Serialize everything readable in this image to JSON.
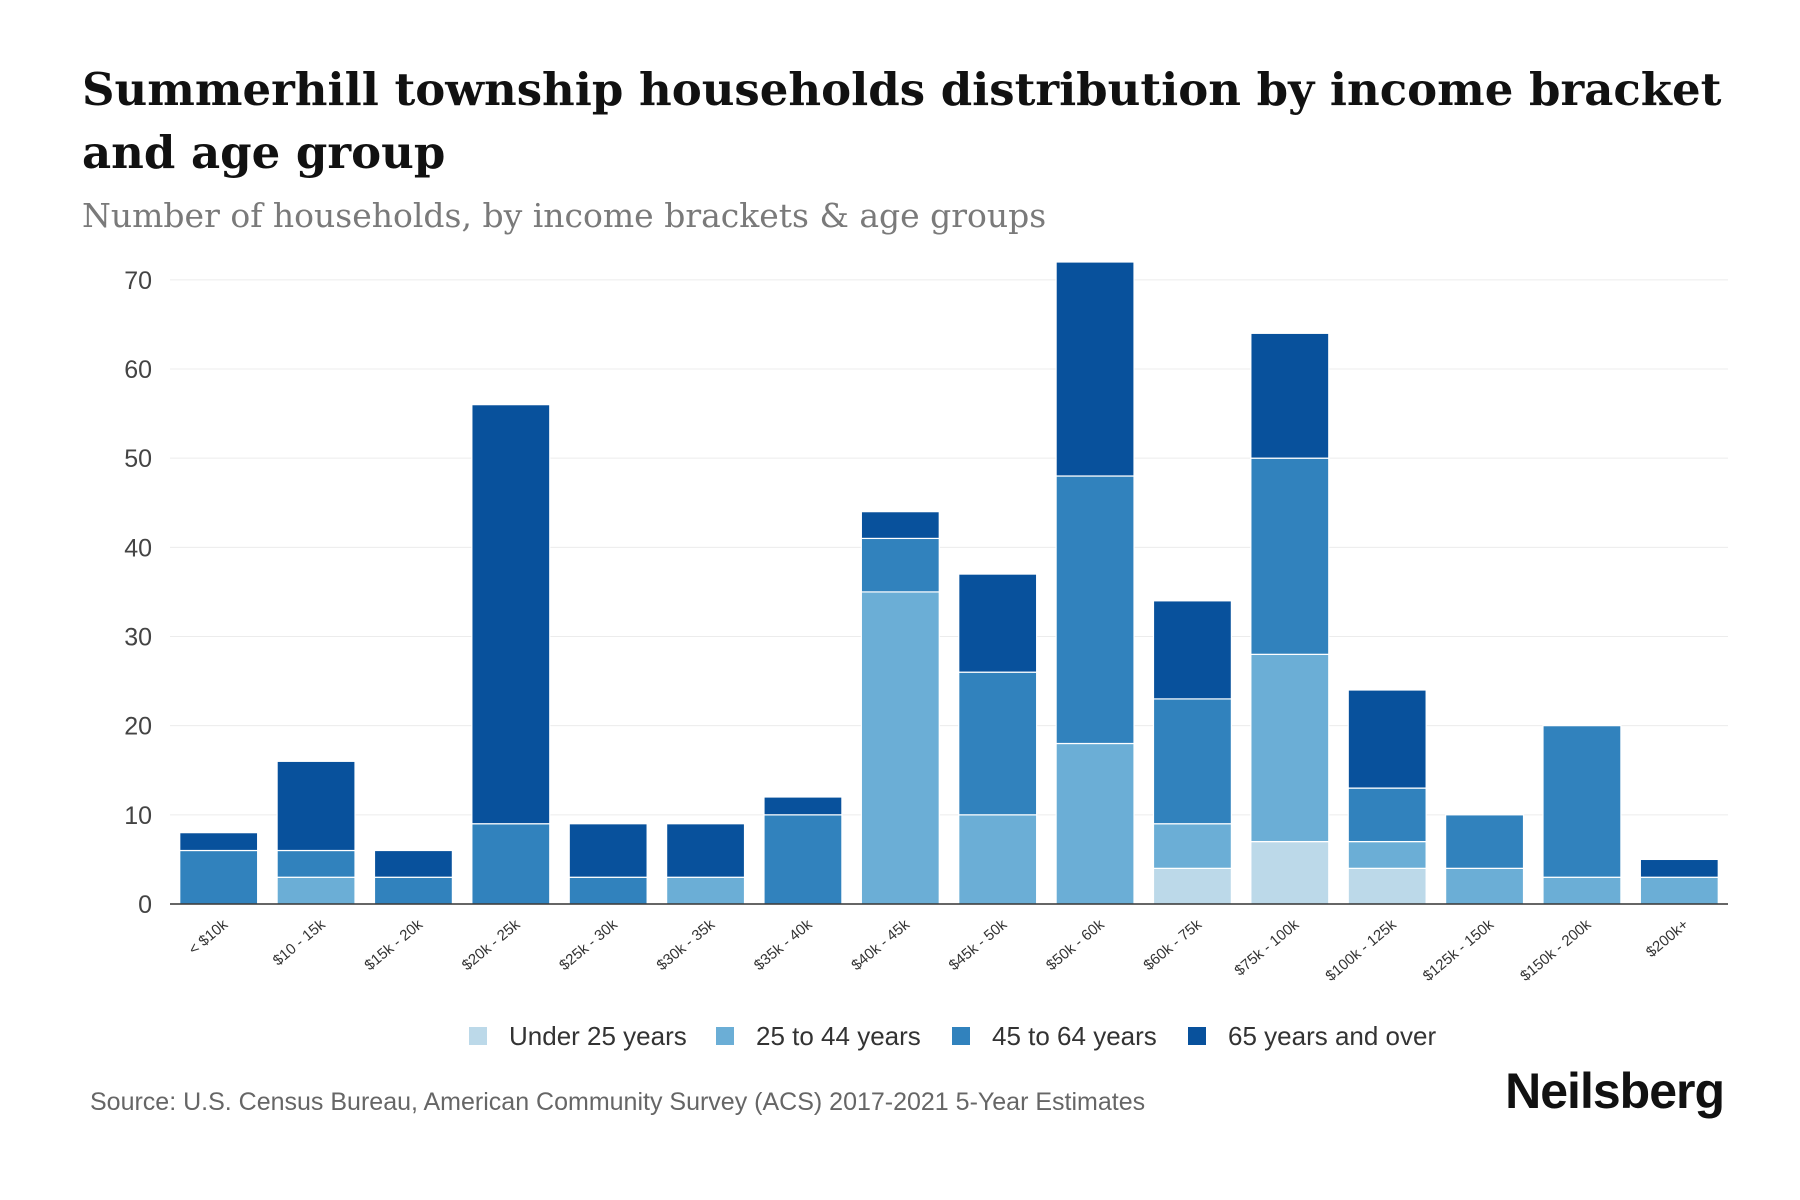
{
  "header": {
    "title": "Summerhill township households distribution by income bracket and age group",
    "subtitle": "Number of households, by income brackets & age groups"
  },
  "footer": {
    "source": "Source: U.S. Census Bureau, American Community Survey (ACS) 2017-2021 5-Year Estimates",
    "brand": "Neilsberg"
  },
  "chart_data": {
    "type": "bar",
    "stacked": true,
    "title": "Summerhill township households distribution by income bracket and age group",
    "subtitle": "Number of households, by income brackets & age groups",
    "xlabel": "",
    "ylabel": "",
    "ylim": [
      0,
      72
    ],
    "yticks": [
      0,
      10,
      20,
      30,
      40,
      50,
      60,
      70
    ],
    "grid": true,
    "legend_position": "bottom",
    "categories": [
      "< $10k",
      "$10 - 15k",
      "$15k - 20k",
      "$20k - 25k",
      "$25k - 30k",
      "$30k - 35k",
      "$35k - 40k",
      "$40k - 45k",
      "$45k - 50k",
      "$50k - 60k",
      "$60k - 75k",
      "$75k - 100k",
      "$100k - 125k",
      "$125k - 150k",
      "$150k - 200k",
      "$200k+"
    ],
    "series": [
      {
        "name": "Under 25 years",
        "color": "#bcd9e9",
        "values": [
          0,
          0,
          0,
          0,
          0,
          0,
          0,
          0,
          0,
          0,
          4,
          7,
          4,
          0,
          0,
          0
        ]
      },
      {
        "name": "25 to 44 years",
        "color": "#6baed6",
        "values": [
          0,
          3,
          0,
          0,
          0,
          3,
          0,
          35,
          10,
          18,
          5,
          21,
          3,
          4,
          3,
          3
        ]
      },
      {
        "name": "45 to 64 years",
        "color": "#3182bd",
        "values": [
          6,
          3,
          3,
          9,
          3,
          0,
          10,
          6,
          16,
          30,
          14,
          22,
          6,
          6,
          17,
          0
        ]
      },
      {
        "name": "65 years and over",
        "color": "#08519c",
        "values": [
          2,
          10,
          3,
          47,
          6,
          6,
          2,
          3,
          11,
          24,
          11,
          14,
          11,
          0,
          0,
          2
        ]
      }
    ]
  }
}
